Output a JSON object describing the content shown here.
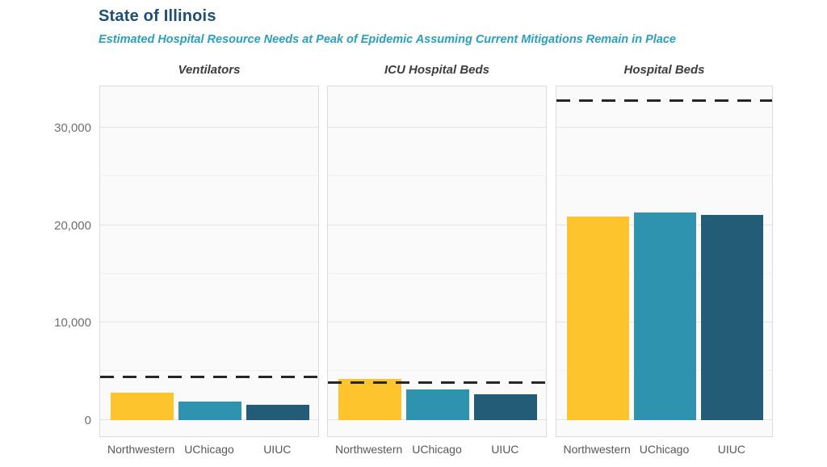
{
  "header": {
    "title": "State of Illinois",
    "subtitle": "Estimated Hospital Resource Needs at Peak of Epidemic Assuming Current Mitigations Remain in Place"
  },
  "colors": {
    "title_text": "#1d4e74",
    "subtitle_text": "#2b9fbe",
    "facet_title_text": "#3d3d3d",
    "axis_text": "#6e6e6e",
    "x_label_text": "#575757",
    "panel_bg": "#fafafa",
    "panel_border": "#dcdcdc",
    "grid_major": "#e4e4e4",
    "grid_minor": "#f1f1f1",
    "capacity_line": "#262626",
    "northwestern": "#fdc42e",
    "uchicago": "#2e93ae",
    "uiuc": "#235c77"
  },
  "chart_data": {
    "type": "bar",
    "title": "State of Illinois",
    "subtitle": "Estimated Hospital Resource Needs at Peak of Epidemic Assuming Current Mitigations Remain in Place",
    "categories": [
      "Northwestern",
      "UChicago",
      "UIUC"
    ],
    "series_colors": [
      "#fdc42e",
      "#2e93ae",
      "#235c77"
    ],
    "facets": [
      {
        "title": "Ventilators",
        "capacity": 4400,
        "values": [
          2800,
          1850,
          1500
        ]
      },
      {
        "title": "ICU Hospital Beds",
        "capacity": 3800,
        "values": [
          4200,
          3100,
          2600
        ]
      },
      {
        "title": "Hospital Beds",
        "capacity": 32800,
        "values": [
          20900,
          21300,
          21000
        ]
      }
    ],
    "capacity_line_style": "dashed",
    "yticks": [
      0,
      10000,
      20000,
      30000
    ],
    "ytick_labels": [
      "0",
      "10,000",
      "20,000",
      "30,000"
    ],
    "yticks_minor": [
      5000,
      15000,
      25000
    ],
    "ylim": [
      -1700,
      34400
    ],
    "grid": true,
    "legend": "none",
    "ylabel": "",
    "xlabel": ""
  }
}
